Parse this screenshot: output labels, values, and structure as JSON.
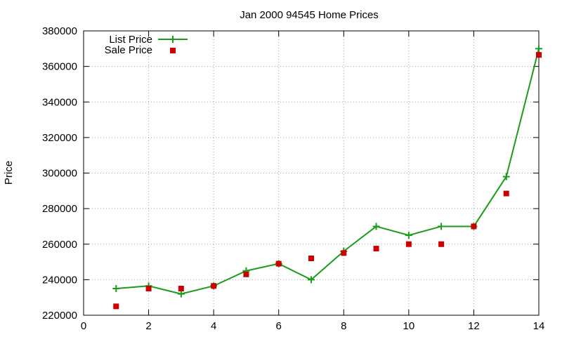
{
  "chart_data": {
    "type": "line",
    "title": "Jan 2000 94545 Home Prices",
    "xlabel": "",
    "ylabel": "Price",
    "xlim": [
      0,
      14
    ],
    "ylim": [
      220000,
      380000
    ],
    "x_ticks": [
      0,
      2,
      4,
      6,
      8,
      10,
      12,
      14
    ],
    "y_ticks": [
      220000,
      240000,
      260000,
      280000,
      300000,
      320000,
      340000,
      360000,
      380000
    ],
    "grid": true,
    "legend_position": "top-left",
    "series": [
      {
        "name": "List Price",
        "style": "line-with-plus-markers",
        "color": "#1a9c1a",
        "x": [
          1,
          2,
          3,
          4,
          5,
          6,
          7,
          8,
          9,
          10,
          11,
          12,
          13,
          14
        ],
        "y": [
          235000,
          236500,
          232000,
          236500,
          245000,
          249000,
          240000,
          256000,
          270000,
          265000,
          270000,
          270000,
          298000,
          370000
        ]
      },
      {
        "name": "Sale Price",
        "style": "square-markers",
        "color": "#cc0000",
        "x": [
          1,
          2,
          3,
          4,
          5,
          6,
          7,
          8,
          9,
          10,
          11,
          12,
          13,
          14
        ],
        "y": [
          225000,
          235000,
          235000,
          236500,
          243000,
          249000,
          252000,
          255000,
          257500,
          260000,
          260000,
          270000,
          288500,
          366500
        ]
      }
    ]
  }
}
